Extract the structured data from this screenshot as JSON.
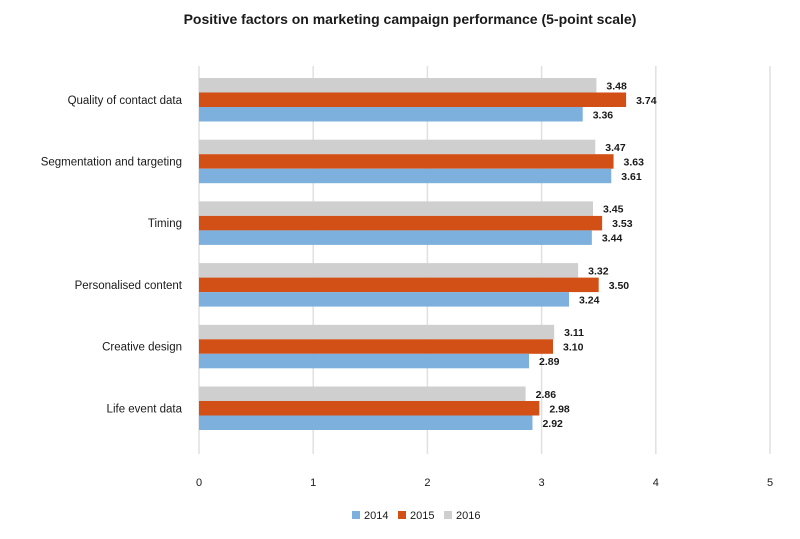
{
  "chart_data": {
    "type": "bar",
    "orientation": "horizontal",
    "title": "Positive factors on marketing campaign performance (5-point scale)",
    "categories": [
      "Quality of contact data",
      "Segmentation and targeting",
      "Timing",
      "Personalised content",
      "Creative design",
      "Life event data"
    ],
    "series": [
      {
        "name": "2016",
        "color": "#cfcfcf",
        "values": [
          3.48,
          3.47,
          3.45,
          3.32,
          3.11,
          2.86
        ],
        "labels": [
          "3.48",
          "3.47",
          "3.45",
          "3.32",
          "3.11",
          "2.86"
        ]
      },
      {
        "name": "2015",
        "color": "#d24f16",
        "values": [
          3.74,
          3.63,
          3.53,
          3.5,
          3.1,
          2.98
        ],
        "labels": [
          "3.74",
          "3.63",
          "3.53",
          "3.50",
          "3.10",
          "2.98"
        ]
      },
      {
        "name": "2014",
        "color": "#7db0dd",
        "values": [
          3.36,
          3.61,
          3.44,
          3.24,
          2.89,
          2.92
        ],
        "labels": [
          "3.36",
          "3.61",
          "3.44",
          "3.24",
          "2.89",
          "2.92"
        ]
      }
    ],
    "legend_order": [
      "2014",
      "2015",
      "2016"
    ],
    "legend_position": "bottom",
    "xlim": [
      0,
      5
    ],
    "xticks": [
      "0",
      "1",
      "2",
      "3",
      "4",
      "5"
    ],
    "grid": "vertical",
    "gridline_color": "#e0e0e0"
  }
}
